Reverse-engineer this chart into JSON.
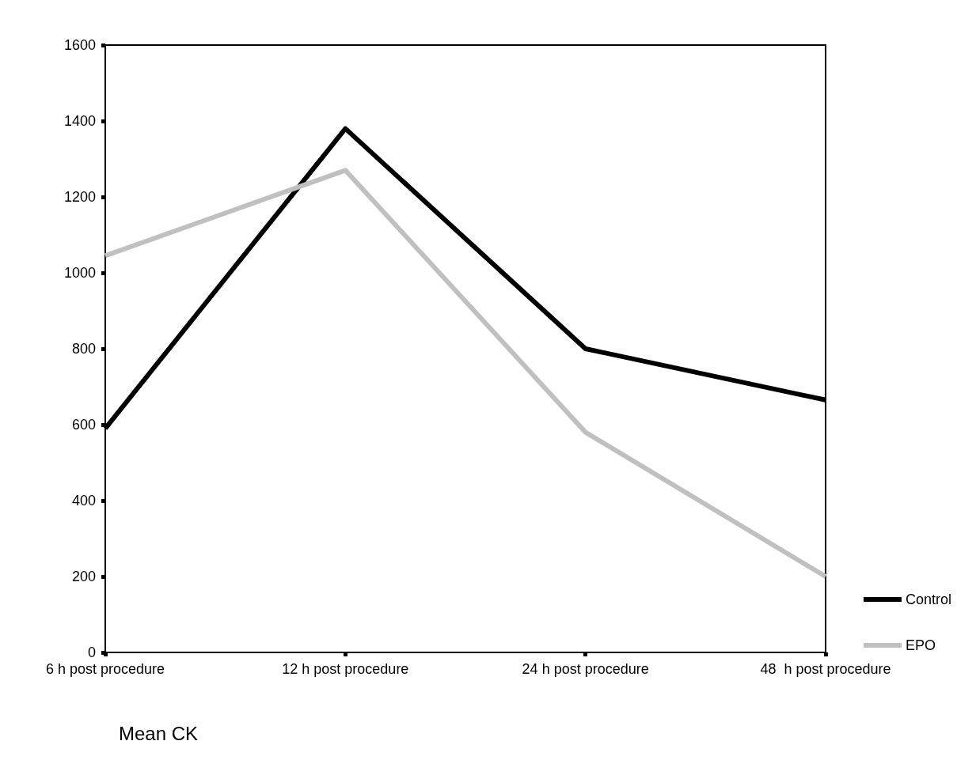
{
  "chart_data": {
    "type": "line",
    "categories": [
      "6 h post procedure",
      "12 h post procedure",
      "24 h post procedure",
      "48  h post procedure"
    ],
    "series": [
      {
        "name": "Control",
        "color": "#000000",
        "values": [
          590,
          1380,
          800,
          665
        ]
      },
      {
        "name": "EPO",
        "color": "#c0c0c0",
        "values": [
          1045,
          1270,
          580,
          200
        ]
      }
    ],
    "ylim": [
      0,
      1600
    ],
    "yticks": [
      0,
      200,
      400,
      600,
      800,
      1000,
      1200,
      1400,
      1600
    ],
    "grid": false,
    "legend": "bottom right",
    "marker": "none",
    "line_style": "solid",
    "annotations": [
      "Mean CK"
    ]
  }
}
